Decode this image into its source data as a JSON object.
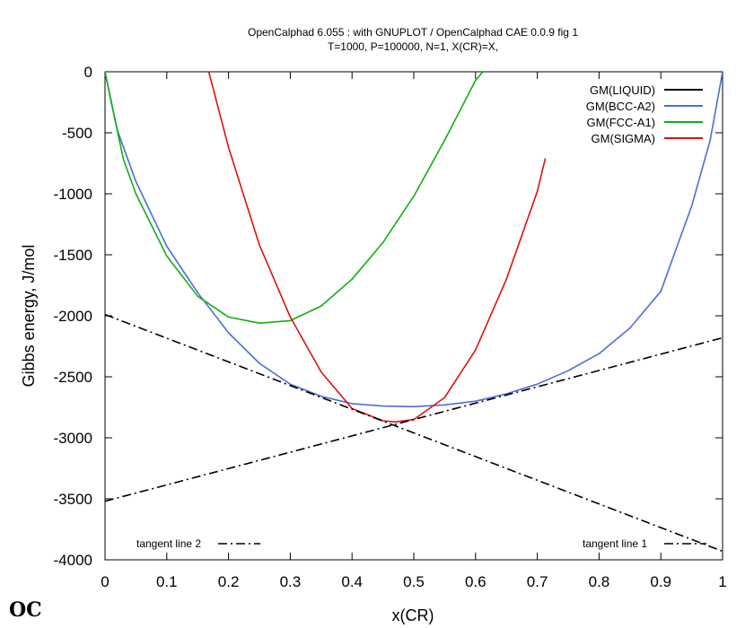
{
  "title_lines": [
    "OpenCalphad   6.055 : with GNUPLOT / OpenCalphad CAE 0.0.9 fig 1",
    "T=1000, P=100000, N=1, X(CR)=X,"
  ],
  "logo_text": "OC",
  "chart_data": {
    "type": "line",
    "xlabel": "x(CR)",
    "ylabel": "Gibbs energy, J/mol",
    "xlim": [
      0,
      1
    ],
    "ylim": [
      -4000,
      0
    ],
    "x_ticks": [
      0,
      0.1,
      0.2,
      0.3,
      0.4,
      0.5,
      0.6,
      0.7,
      0.8,
      0.9,
      1
    ],
    "x_tick_labels": [
      "0",
      "0.1",
      "0.2",
      "0.3",
      "0.4",
      "0.5",
      "0.6",
      "0.7",
      "0.8",
      "0.9",
      "1"
    ],
    "y_ticks": [
      0,
      -500,
      -1000,
      -1500,
      -2000,
      -2500,
      -3000,
      -3500,
      -4000
    ],
    "y_tick_labels": [
      "0",
      "-500",
      "-1000",
      "-1500",
      "-2000",
      "-2500",
      "-3000",
      "-3500",
      "-4000"
    ],
    "grid": false,
    "legend_position": "top-right",
    "series": [
      {
        "name": "GM(LIQUID)",
        "color": "#000000",
        "style": "solid",
        "x": [],
        "y": []
      },
      {
        "name": "GM(BCC-A2)",
        "color": "#4a6fd6",
        "style": "solid",
        "x": [
          0.0,
          0.02,
          0.05,
          0.1,
          0.15,
          0.2,
          0.25,
          0.3,
          0.35,
          0.4,
          0.45,
          0.5,
          0.55,
          0.6,
          0.65,
          0.7,
          0.75,
          0.8,
          0.85,
          0.9,
          0.95,
          0.98,
          1.0
        ],
        "y": [
          0,
          -480,
          -900,
          -1430,
          -1810,
          -2140,
          -2390,
          -2560,
          -2660,
          -2720,
          -2740,
          -2745,
          -2730,
          -2700,
          -2640,
          -2560,
          -2450,
          -2310,
          -2100,
          -1800,
          -1100,
          -560,
          0
        ]
      },
      {
        "name": "GM(FCC-A1)",
        "color": "#10b010",
        "style": "solid",
        "x": [
          0.0,
          0.01,
          0.03,
          0.05,
          0.1,
          0.15,
          0.2,
          0.25,
          0.3,
          0.35,
          0.4,
          0.45,
          0.5,
          0.55,
          0.6,
          0.612
        ],
        "y": [
          0,
          -250,
          -720,
          -1000,
          -1510,
          -1840,
          -2010,
          -2060,
          -2040,
          -1920,
          -1700,
          -1400,
          -1020,
          -560,
          -70,
          0
        ]
      },
      {
        "name": "GM(SIGMA)",
        "color": "#e01010",
        "style": "solid",
        "x": [
          0.168,
          0.2,
          0.25,
          0.3,
          0.35,
          0.4,
          0.45,
          0.47,
          0.5,
          0.55,
          0.6,
          0.65,
          0.7,
          0.713
        ],
        "y": [
          0,
          -620,
          -1420,
          -2010,
          -2460,
          -2760,
          -2860,
          -2870,
          -2850,
          -2670,
          -2280,
          -1700,
          -980,
          -710
        ]
      },
      {
        "name": "tangent line 2",
        "color": "#000000",
        "style": "dashdot",
        "x": [
          0,
          1
        ],
        "y": [
          -1990,
          -3930
        ]
      },
      {
        "name": "tangent line 1",
        "color": "#000000",
        "style": "dashdot",
        "x": [
          0,
          1
        ],
        "y": [
          -3520,
          -2180
        ]
      }
    ]
  }
}
